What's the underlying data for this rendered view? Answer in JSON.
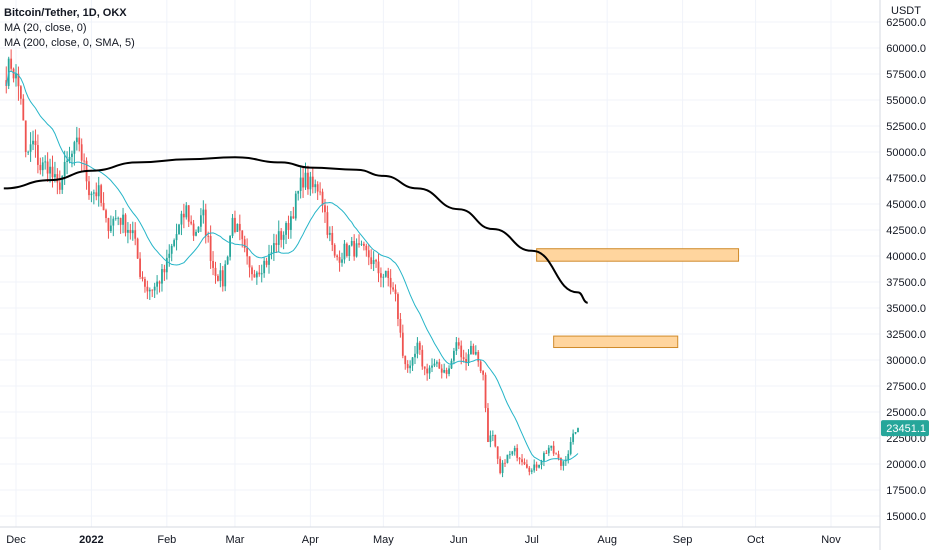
{
  "legend": {
    "title": "Bitcoin/Tether, 1D, OKX",
    "ma20": "MA (20, close, 0)",
    "ma200": "MA (200, close, 0, SMA, 5)"
  },
  "colors": {
    "up": "#26a69a",
    "down": "#ef5350",
    "ma20": "#26b5c8",
    "ma200": "#000000",
    "zone_fill": "#ffd59e",
    "zone_stroke": "#d08a2a",
    "price_badge": "#26a69a"
  },
  "chart_data": {
    "type": "candlestick",
    "y_unit": "USDT",
    "ylim": [
      15000,
      63000
    ],
    "y_ticks": [
      15000,
      17500,
      20000,
      22500,
      25000,
      27500,
      30000,
      32500,
      35000,
      37500,
      40000,
      42500,
      45000,
      47500,
      50000,
      52500,
      55000,
      57500,
      60000,
      62500
    ],
    "y_tick_labels": [
      "15000.0",
      "17500.0",
      "20000.0",
      "22500.0",
      "25000.0",
      "27500.0",
      "30000.0",
      "32500.0",
      "35000.0",
      "37500.0",
      "40000.0",
      "42500.0",
      "45000.0",
      "47500.0",
      "50000.0",
      "52500.0",
      "55000.0",
      "57500.0",
      "60000.0",
      "62500.0"
    ],
    "x_labels": [
      {
        "label": "Dec",
        "date": "2021-12-01",
        "bold": false
      },
      {
        "label": "2022",
        "date": "2022-01-01",
        "bold": true
      },
      {
        "label": "Feb",
        "date": "2022-02-01",
        "bold": false
      },
      {
        "label": "Mar",
        "date": "2022-03-01",
        "bold": false
      },
      {
        "label": "Apr",
        "date": "2022-04-01",
        "bold": false
      },
      {
        "label": "May",
        "date": "2022-05-01",
        "bold": false
      },
      {
        "label": "Jun",
        "date": "2022-06-01",
        "bold": false
      },
      {
        "label": "Jul",
        "date": "2022-07-01",
        "bold": false
      },
      {
        "label": "Aug",
        "date": "2022-08-01",
        "bold": false
      },
      {
        "label": "Sep",
        "date": "2022-09-01",
        "bold": false
      },
      {
        "label": "Oct",
        "date": "2022-10-01",
        "bold": false
      },
      {
        "label": "Nov",
        "date": "2022-11-01",
        "bold": false
      }
    ],
    "last_price": 23451.1,
    "last_price_label": "23451.1",
    "anchors": [
      [
        "2021-11-27",
        57500
      ],
      [
        "2021-11-29",
        58500
      ],
      [
        "2021-12-01",
        57000
      ],
      [
        "2021-12-03",
        55500
      ],
      [
        "2021-12-05",
        49500
      ],
      [
        "2021-12-08",
        50800
      ],
      [
        "2021-12-11",
        48500
      ],
      [
        "2021-12-14",
        48800
      ],
      [
        "2021-12-18",
        46500
      ],
      [
        "2021-12-22",
        48800
      ],
      [
        "2021-12-27",
        51000
      ],
      [
        "2021-12-28",
        49500
      ],
      [
        "2021-12-31",
        46500
      ],
      [
        "2022-01-04",
        46000
      ],
      [
        "2022-01-07",
        43000
      ],
      [
        "2022-01-12",
        43800
      ],
      [
        "2022-01-15",
        43000
      ],
      [
        "2022-01-18",
        42200
      ],
      [
        "2022-01-21",
        38500
      ],
      [
        "2022-01-24",
        36800
      ],
      [
        "2022-01-27",
        37000
      ],
      [
        "2022-01-31",
        38500
      ],
      [
        "2022-02-04",
        41500
      ],
      [
        "2022-02-09",
        44500
      ],
      [
        "2022-02-12",
        42200
      ],
      [
        "2022-02-16",
        43800
      ],
      [
        "2022-02-20",
        39000
      ],
      [
        "2022-02-24",
        37500
      ],
      [
        "2022-02-28",
        43500
      ],
      [
        "2022-03-03",
        41800
      ],
      [
        "2022-03-07",
        38500
      ],
      [
        "2022-03-11",
        38900
      ],
      [
        "2022-03-15",
        39800
      ],
      [
        "2022-03-18",
        41500
      ],
      [
        "2022-03-22",
        42500
      ],
      [
        "2022-03-25",
        44500
      ],
      [
        "2022-03-29",
        47500
      ],
      [
        "2022-04-02",
        46500
      ],
      [
        "2022-04-05",
        46700
      ],
      [
        "2022-04-08",
        42800
      ],
      [
        "2022-04-11",
        39700
      ],
      [
        "2022-04-15",
        40500
      ],
      [
        "2022-04-18",
        40800
      ],
      [
        "2022-04-21",
        40500
      ],
      [
        "2022-04-25",
        40000
      ],
      [
        "2022-04-29",
        38500
      ],
      [
        "2022-05-03",
        37800
      ],
      [
        "2022-05-06",
        36000
      ],
      [
        "2022-05-09",
        30500
      ],
      [
        "2022-05-12",
        28900
      ],
      [
        "2022-05-15",
        31200
      ],
      [
        "2022-05-18",
        29000
      ],
      [
        "2022-05-21",
        29400
      ],
      [
        "2022-05-24",
        29200
      ],
      [
        "2022-05-28",
        29000
      ],
      [
        "2022-05-31",
        31700
      ],
      [
        "2022-06-03",
        29800
      ],
      [
        "2022-06-06",
        31300
      ],
      [
        "2022-06-09",
        30100
      ],
      [
        "2022-06-11",
        28400
      ],
      [
        "2022-06-13",
        22500
      ],
      [
        "2022-06-15",
        22500
      ],
      [
        "2022-06-18",
        19000
      ],
      [
        "2022-06-20",
        20500
      ],
      [
        "2022-06-24",
        21200
      ],
      [
        "2022-06-28",
        20300
      ],
      [
        "2022-07-01",
        19300
      ],
      [
        "2022-07-04",
        20200
      ],
      [
        "2022-07-08",
        21600
      ],
      [
        "2022-07-11",
        20800
      ],
      [
        "2022-07-13",
        19900
      ],
      [
        "2022-07-16",
        21200
      ],
      [
        "2022-07-18",
        22500
      ],
      [
        "2022-07-19",
        23400
      ],
      [
        "2022-07-20",
        23451
      ]
    ],
    "ma200": [
      [
        "2021-11-26",
        46500
      ],
      [
        "2021-12-15",
        47300
      ],
      [
        "2022-01-01",
        48200
      ],
      [
        "2022-01-20",
        49000
      ],
      [
        "2022-02-10",
        49300
      ],
      [
        "2022-03-01",
        49500
      ],
      [
        "2022-03-20",
        49000
      ],
      [
        "2022-04-01",
        48500
      ],
      [
        "2022-04-20",
        48300
      ],
      [
        "2022-05-01",
        47700
      ],
      [
        "2022-05-15",
        46500
      ],
      [
        "2022-06-01",
        44500
      ],
      [
        "2022-06-15",
        42600
      ],
      [
        "2022-07-01",
        40500
      ],
      [
        "2022-07-20",
        36500
      ],
      [
        "2022-07-24",
        35500
      ]
    ],
    "zones": [
      {
        "from": "2022-07-03",
        "to": "2022-09-24",
        "low": 39500,
        "high": 40700
      },
      {
        "from": "2022-07-10",
        "to": "2022-08-30",
        "low": 31200,
        "high": 32300
      }
    ]
  }
}
